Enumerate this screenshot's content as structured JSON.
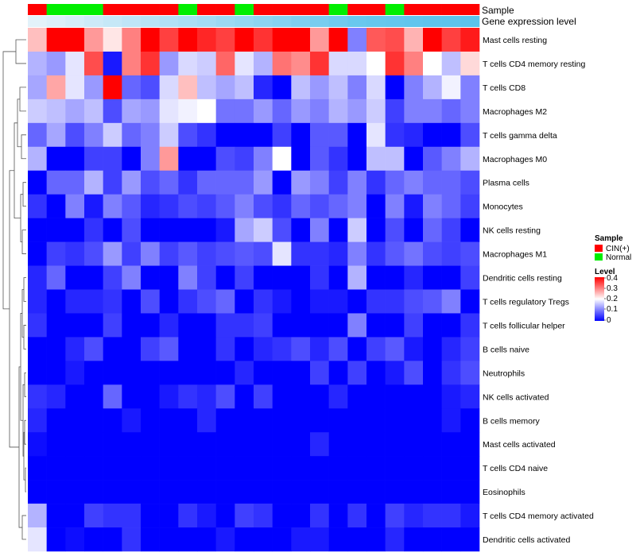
{
  "chart_data": {
    "type": "heatmap",
    "title": "",
    "annotation_tracks": [
      "Sample",
      "Gene expression level"
    ],
    "sample_groups": [
      "CIN(+)",
      "Normal",
      "Normal",
      "Normal",
      "CIN(+)",
      "CIN(+)",
      "CIN(+)",
      "CIN(+)",
      "Normal",
      "CIN(+)",
      "CIN(+)",
      "Normal",
      "CIN(+)",
      "CIN(+)",
      "CIN(+)",
      "CIN(+)",
      "Normal",
      "CIN(+)",
      "CIN(+)",
      "Normal",
      "CIN(+)",
      "CIN(+)",
      "CIN(+)",
      "CIN(+)"
    ],
    "expression_level": [
      0.05,
      0.1,
      0.15,
      0.2,
      0.25,
      0.3,
      0.35,
      0.4,
      0.45,
      0.5,
      0.55,
      0.6,
      0.65,
      0.7,
      0.75,
      0.8,
      0.85,
      0.9,
      0.92,
      0.94,
      0.96,
      0.97,
      0.98,
      1.0
    ],
    "rows": [
      "Mast cells resting",
      "T cells CD4 memory resting",
      "T cells CD8",
      "Macrophages M2",
      "T cells gamma delta",
      "Macrophages M0",
      "Plasma cells",
      "Monocytes",
      "NK cells resting",
      "Macrophages M1",
      "Dendritic cells resting",
      "T cells regulatory  Tregs",
      "T cells follicular helper",
      "B cells naive",
      "Neutrophils",
      "NK cells activated",
      "B cells memory",
      "Mast cells activated",
      "T cells CD4 naive",
      "Eosinophils",
      "T cells CD4 memory activated",
      "Dendritic cells activated"
    ],
    "values": [
      [
        0.25,
        0.4,
        0.4,
        0.28,
        0.22,
        0.3,
        0.4,
        0.35,
        0.4,
        0.37,
        0.35,
        0.4,
        0.36,
        0.4,
        0.4,
        0.28,
        0.4,
        0.1,
        0.33,
        0.34,
        0.26,
        0.4,
        0.35,
        0.38
      ],
      [
        0.14,
        0.12,
        0.18,
        0.34,
        0.02,
        0.3,
        0.36,
        0.12,
        0.17,
        0.16,
        0.32,
        0.18,
        0.14,
        0.31,
        0.29,
        0.36,
        0.17,
        0.17,
        0.2,
        0.36,
        0.3,
        0.2,
        0.15,
        0.23
      ],
      [
        0.13,
        0.27,
        0.18,
        0.12,
        0.4,
        0.08,
        0.06,
        0.17,
        0.25,
        0.15,
        0.13,
        0.15,
        0.03,
        0.0,
        0.15,
        0.12,
        0.15,
        0.1,
        0.17,
        0.0,
        0.1,
        0.14,
        0.19,
        0.1
      ],
      [
        0.16,
        0.15,
        0.13,
        0.15,
        0.06,
        0.13,
        0.12,
        0.18,
        0.19,
        0.2,
        0.09,
        0.09,
        0.12,
        0.08,
        0.12,
        0.1,
        0.14,
        0.12,
        0.16,
        0.05,
        0.1,
        0.1,
        0.08,
        0.1
      ],
      [
        0.08,
        0.13,
        0.06,
        0.1,
        0.16,
        0.08,
        0.1,
        0.16,
        0.06,
        0.04,
        0.0,
        0.0,
        0.0,
        0.05,
        0.0,
        0.07,
        0.07,
        0.0,
        0.18,
        0.04,
        0.03,
        0.0,
        0.0,
        0.06
      ],
      [
        0.14,
        0.0,
        0.0,
        0.05,
        0.05,
        0.0,
        0.1,
        0.28,
        0.0,
        0.0,
        0.06,
        0.05,
        0.1,
        0.2,
        0.0,
        0.07,
        0.04,
        0.0,
        0.15,
        0.15,
        0.0,
        0.07,
        0.1,
        0.14
      ],
      [
        0.0,
        0.08,
        0.08,
        0.14,
        0.05,
        0.12,
        0.06,
        0.08,
        0.04,
        0.08,
        0.08,
        0.08,
        0.12,
        0.0,
        0.12,
        0.1,
        0.05,
        0.1,
        0.04,
        0.08,
        0.1,
        0.08,
        0.08,
        0.06
      ],
      [
        0.04,
        0.0,
        0.1,
        0.02,
        0.1,
        0.07,
        0.03,
        0.04,
        0.06,
        0.05,
        0.07,
        0.1,
        0.06,
        0.04,
        0.08,
        0.06,
        0.08,
        0.1,
        0.0,
        0.1,
        0.02,
        0.1,
        0.08,
        0.05
      ],
      [
        0.0,
        0.0,
        0.0,
        0.04,
        0.0,
        0.06,
        0.0,
        0.0,
        0.0,
        0.0,
        0.02,
        0.13,
        0.16,
        0.06,
        0.0,
        0.1,
        0.0,
        0.16,
        0.0,
        0.06,
        0.0,
        0.08,
        0.05,
        0.0
      ],
      [
        0.0,
        0.05,
        0.04,
        0.06,
        0.12,
        0.05,
        0.1,
        0.05,
        0.07,
        0.05,
        0.06,
        0.07,
        0.06,
        0.18,
        0.04,
        0.04,
        0.03,
        0.1,
        0.04,
        0.07,
        0.09,
        0.06,
        0.05,
        0.06
      ],
      [
        0.03,
        0.08,
        0.0,
        0.0,
        0.05,
        0.1,
        0.0,
        0.0,
        0.1,
        0.05,
        0.0,
        0.05,
        0.0,
        0.0,
        0.0,
        0.04,
        0.0,
        0.14,
        0.0,
        0.0,
        0.03,
        0.0,
        0.0,
        0.05
      ],
      [
        0.03,
        0.0,
        0.03,
        0.03,
        0.04,
        0.0,
        0.06,
        0.0,
        0.04,
        0.06,
        0.08,
        0.0,
        0.04,
        0.02,
        0.0,
        0.02,
        0.02,
        0.0,
        0.04,
        0.04,
        0.06,
        0.07,
        0.1,
        0.0
      ],
      [
        0.04,
        0.0,
        0.0,
        0.0,
        0.05,
        0.0,
        0.0,
        0.03,
        0.0,
        0.0,
        0.04,
        0.04,
        0.05,
        0.0,
        0.0,
        0.0,
        0.0,
        0.1,
        0.0,
        0.0,
        0.05,
        0.0,
        0.0,
        0.04
      ],
      [
        0.0,
        0.0,
        0.03,
        0.06,
        0.0,
        0.0,
        0.05,
        0.07,
        0.0,
        0.0,
        0.04,
        0.0,
        0.03,
        0.04,
        0.06,
        0.03,
        0.06,
        0.0,
        0.05,
        0.07,
        0.02,
        0.0,
        0.03,
        0.05
      ],
      [
        0.0,
        0.0,
        0.02,
        0.0,
        0.0,
        0.0,
        0.0,
        0.0,
        0.0,
        0.0,
        0.0,
        0.03,
        0.0,
        0.0,
        0.0,
        0.05,
        0.0,
        0.05,
        0.0,
        0.02,
        0.06,
        0.0,
        0.04,
        0.06
      ],
      [
        0.04,
        0.03,
        0.0,
        0.0,
        0.08,
        0.0,
        0.0,
        0.02,
        0.04,
        0.03,
        0.06,
        0.0,
        0.05,
        0.0,
        0.0,
        0.0,
        0.03,
        0.0,
        0.0,
        0.0,
        0.0,
        0.0,
        0.02,
        0.03
      ],
      [
        0.03,
        0.0,
        0.0,
        0.0,
        0.0,
        0.02,
        0.0,
        0.0,
        0.0,
        0.03,
        0.0,
        0.0,
        0.0,
        0.0,
        0.0,
        0.0,
        0.0,
        0.0,
        0.0,
        0.0,
        0.0,
        0.0,
        0.02,
        0.0
      ],
      [
        0.01,
        0.0,
        0.0,
        0.0,
        0.0,
        0.0,
        0.0,
        0.0,
        0.0,
        0.0,
        0.0,
        0.0,
        0.0,
        0.0,
        0.0,
        0.03,
        0.0,
        0.0,
        0.0,
        0.0,
        0.0,
        0.0,
        0.0,
        0.0
      ],
      [
        0.0,
        0.0,
        0.0,
        0.0,
        0.0,
        0.0,
        0.0,
        0.0,
        0.0,
        0.0,
        0.0,
        0.0,
        0.0,
        0.0,
        0.0,
        0.0,
        0.0,
        0.0,
        0.0,
        0.0,
        0.0,
        0.0,
        0.0,
        0.0
      ],
      [
        0.0,
        0.0,
        0.0,
        0.0,
        0.0,
        0.0,
        0.0,
        0.0,
        0.0,
        0.0,
        0.0,
        0.0,
        0.0,
        0.0,
        0.0,
        0.0,
        0.0,
        0.0,
        0.0,
        0.0,
        0.0,
        0.0,
        0.0,
        0.0
      ],
      [
        0.14,
        0.0,
        0.0,
        0.05,
        0.04,
        0.04,
        0.0,
        0.0,
        0.04,
        0.02,
        0.0,
        0.05,
        0.04,
        0.0,
        0.0,
        0.04,
        0.0,
        0.04,
        0.0,
        0.05,
        0.03,
        0.04,
        0.04,
        0.02
      ],
      [
        0.18,
        0.0,
        0.01,
        0.0,
        0.0,
        0.04,
        0.0,
        0.0,
        0.0,
        0.0,
        0.02,
        0.0,
        0.0,
        0.0,
        0.02,
        0.02,
        0.0,
        0.0,
        0.0,
        0.03,
        0.0,
        0.0,
        0.0,
        0.0
      ]
    ],
    "color_scale": {
      "min": 0,
      "max": 0.4,
      "low": "#0000ff",
      "mid": "#ffffff",
      "high": "#ff0000"
    },
    "legend": {
      "sample_title": "Sample",
      "sample_entries": [
        {
          "label": "CIN(+)",
          "color": "#ff0000"
        },
        {
          "label": "Normal",
          "color": "#00ee00"
        }
      ],
      "level_title": "Level",
      "level_ticks": [
        "0.4",
        "0.3",
        "0.2",
        "0.1",
        "0"
      ]
    },
    "expression_colors": {
      "light": "#eaf4fb",
      "dark": "#5bc3ec"
    }
  }
}
